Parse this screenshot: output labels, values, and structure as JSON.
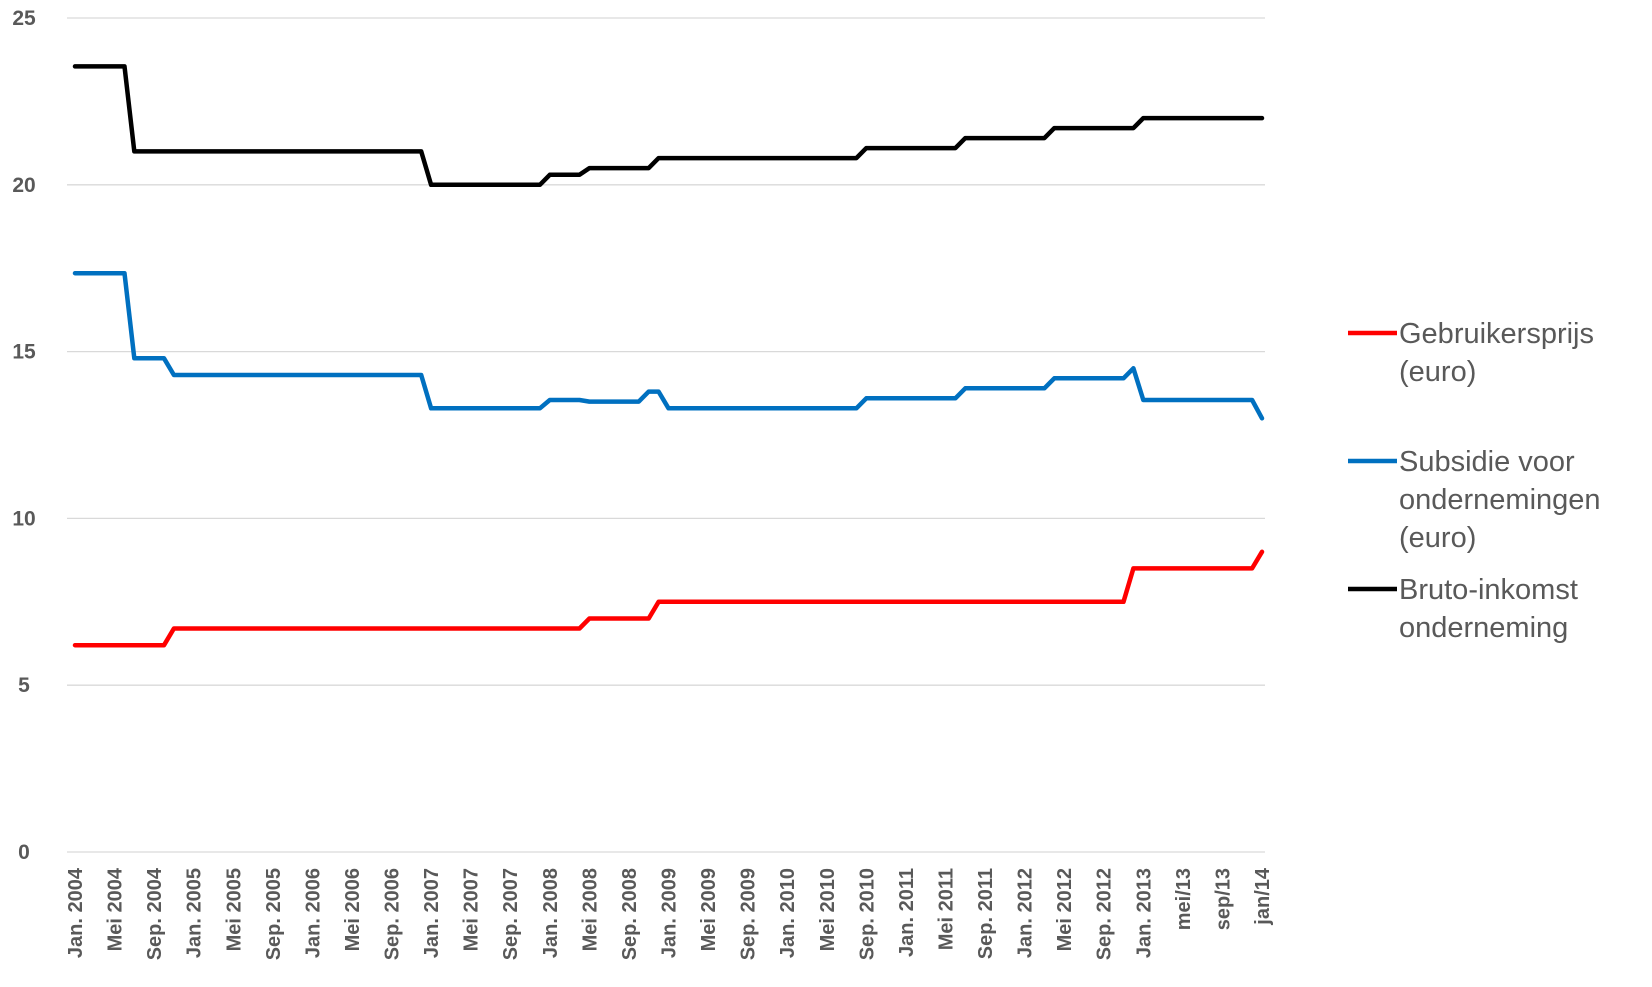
{
  "chart_data": {
    "type": "line",
    "title": "",
    "xlabel": "",
    "ylabel": "",
    "ylim": [
      0,
      25
    ],
    "yticks": [
      0,
      5,
      10,
      15,
      20,
      25
    ],
    "grid": true,
    "legend_position": "right",
    "x_tick_labels": [
      "Jan. 2004",
      "Mei 2004",
      "Sep. 2004",
      "Jan. 2005",
      "Mei 2005",
      "Sep. 2005",
      "Jan. 2006",
      "Mei 2006",
      "Sep. 2006",
      "Jan. 2007",
      "Mei 2007",
      "Sep. 2007",
      "Jan. 2008",
      "Mei 2008",
      "Sep. 2008",
      "Jan. 2009",
      "Mei 2009",
      "Sep. 2009",
      "Jan. 2010",
      "Mei 2010",
      "Sep. 2010",
      "Jan. 2011",
      "Mei 2011",
      "Sep. 2011",
      "Jan. 2012",
      "Mei 2012",
      "Sep. 2012",
      "Jan. 2013",
      "mei/13",
      "sep/13",
      "jan/14"
    ],
    "x_range": [
      "2004-01",
      "2014-01"
    ],
    "series": [
      {
        "name": "Gebruikersprijs (euro)",
        "color": "#ff0000",
        "points": [
          [
            "2004-01",
            6.2
          ],
          [
            "2004-10",
            6.2
          ],
          [
            "2004-11",
            6.7
          ],
          [
            "2007-12",
            6.7
          ],
          [
            "2008-04",
            6.7
          ],
          [
            "2008-05",
            7.0
          ],
          [
            "2008-11",
            7.0
          ],
          [
            "2008-12",
            7.5
          ],
          [
            "2012-11",
            7.5
          ],
          [
            "2012-12",
            8.5
          ],
          [
            "2013-12",
            8.5
          ],
          [
            "2014-01",
            9.0
          ]
        ]
      },
      {
        "name": "Subsidie voor ondernemingen (euro)",
        "color": "#0070c0",
        "points": [
          [
            "2004-01",
            17.35
          ],
          [
            "2004-06",
            17.35
          ],
          [
            "2004-07",
            14.8
          ],
          [
            "2004-10",
            14.8
          ],
          [
            "2004-11",
            14.3
          ],
          [
            "2006-12",
            14.3
          ],
          [
            "2007-01",
            13.3
          ],
          [
            "2007-12",
            13.3
          ],
          [
            "2008-01",
            13.55
          ],
          [
            "2008-04",
            13.55
          ],
          [
            "2008-05",
            13.5
          ],
          [
            "2008-10",
            13.5
          ],
          [
            "2008-11",
            13.8
          ],
          [
            "2008-12",
            13.8
          ],
          [
            "2009-01",
            13.3
          ],
          [
            "2010-08",
            13.3
          ],
          [
            "2010-09",
            13.6
          ],
          [
            "2011-06",
            13.6
          ],
          [
            "2011-07",
            13.9
          ],
          [
            "2012-03",
            13.9
          ],
          [
            "2012-04",
            14.2
          ],
          [
            "2012-11",
            14.2
          ],
          [
            "2012-12",
            14.5
          ],
          [
            "2013-01",
            13.55
          ],
          [
            "2013-12",
            13.55
          ],
          [
            "2014-01",
            13.0
          ]
        ]
      },
      {
        "name": "Bruto-inkomst onderneming",
        "color": "#000000",
        "points": [
          [
            "2004-01",
            23.55
          ],
          [
            "2004-06",
            23.55
          ],
          [
            "2004-07",
            21.0
          ],
          [
            "2006-12",
            21.0
          ],
          [
            "2007-01",
            20.0
          ],
          [
            "2007-12",
            20.0
          ],
          [
            "2008-01",
            20.3
          ],
          [
            "2008-04",
            20.3
          ],
          [
            "2008-05",
            20.5
          ],
          [
            "2008-11",
            20.5
          ],
          [
            "2008-12",
            20.8
          ],
          [
            "2010-08",
            20.8
          ],
          [
            "2010-09",
            21.1
          ],
          [
            "2011-06",
            21.1
          ],
          [
            "2011-07",
            21.4
          ],
          [
            "2012-03",
            21.4
          ],
          [
            "2012-04",
            21.7
          ],
          [
            "2012-12",
            21.7
          ],
          [
            "2013-01",
            22.0
          ],
          [
            "2014-01",
            22.0
          ]
        ]
      }
    ],
    "legend": [
      {
        "series": "Gebruikersprijs (euro)",
        "lines": [
          "Gebruikersprijs",
          "(euro)"
        ]
      },
      {
        "series": "Subsidie voor ondernemingen (euro)",
        "lines": [
          "Subsidie voor",
          "ondernemingen",
          "(euro)"
        ]
      },
      {
        "series": "Bruto-inkomst onderneming",
        "lines": [
          "Bruto-inkomst",
          "onderneming"
        ]
      }
    ]
  }
}
